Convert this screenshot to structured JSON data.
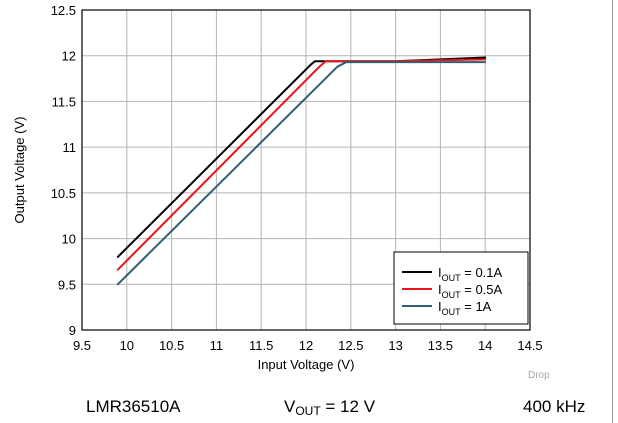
{
  "chart_data": {
    "type": "line",
    "xlabel": "Input Voltage (V)",
    "ylabel": "Output Voltage (V)",
    "xlim": [
      9.5,
      14.5
    ],
    "ylim": [
      9,
      12.5
    ],
    "xticks": [
      "9.5",
      "10",
      "10.5",
      "11",
      "11.5",
      "12",
      "12.5",
      "13",
      "13.5",
      "14",
      "14.5"
    ],
    "yticks": [
      "9",
      "9.5",
      "10",
      "10.5",
      "11",
      "11.5",
      "12",
      "12.5"
    ],
    "grid": true,
    "legend_position": "bottom-right",
    "series": [
      {
        "name": "I_OUT = 0.1A",
        "name_main": "I",
        "name_sub": "OUT",
        "name_rest": " = 0.1A",
        "color": "#000000",
        "x": [
          9.9,
          12.05,
          12.1,
          12.3,
          13.0,
          13.5,
          14.0
        ],
        "y": [
          9.8,
          11.9,
          11.94,
          11.94,
          11.94,
          11.96,
          11.98
        ]
      },
      {
        "name": "I_OUT = 0.5A",
        "name_main": "I",
        "name_sub": "OUT",
        "name_rest": " = 0.5A",
        "color": "#e8141b",
        "x": [
          9.9,
          12.15,
          12.22,
          12.35,
          13.0,
          13.5,
          14.0
        ],
        "y": [
          9.66,
          11.88,
          11.94,
          11.94,
          11.94,
          11.95,
          11.96
        ]
      },
      {
        "name": "I_OUT = 1A",
        "name_main": "I",
        "name_sub": "OUT",
        "name_rest": " = 1A",
        "color": "#2f5f72",
        "x": [
          9.9,
          12.35,
          12.45,
          13.0,
          13.5,
          14.0
        ],
        "y": [
          9.5,
          11.88,
          11.93,
          11.93,
          11.93,
          11.93
        ]
      }
    ]
  },
  "footer": {
    "device": "LMR36510A",
    "vout_main": "V",
    "vout_sub": "OUT",
    "vout_rest": " = 12 V",
    "frequency": "400 kHz"
  },
  "note": "Drop"
}
